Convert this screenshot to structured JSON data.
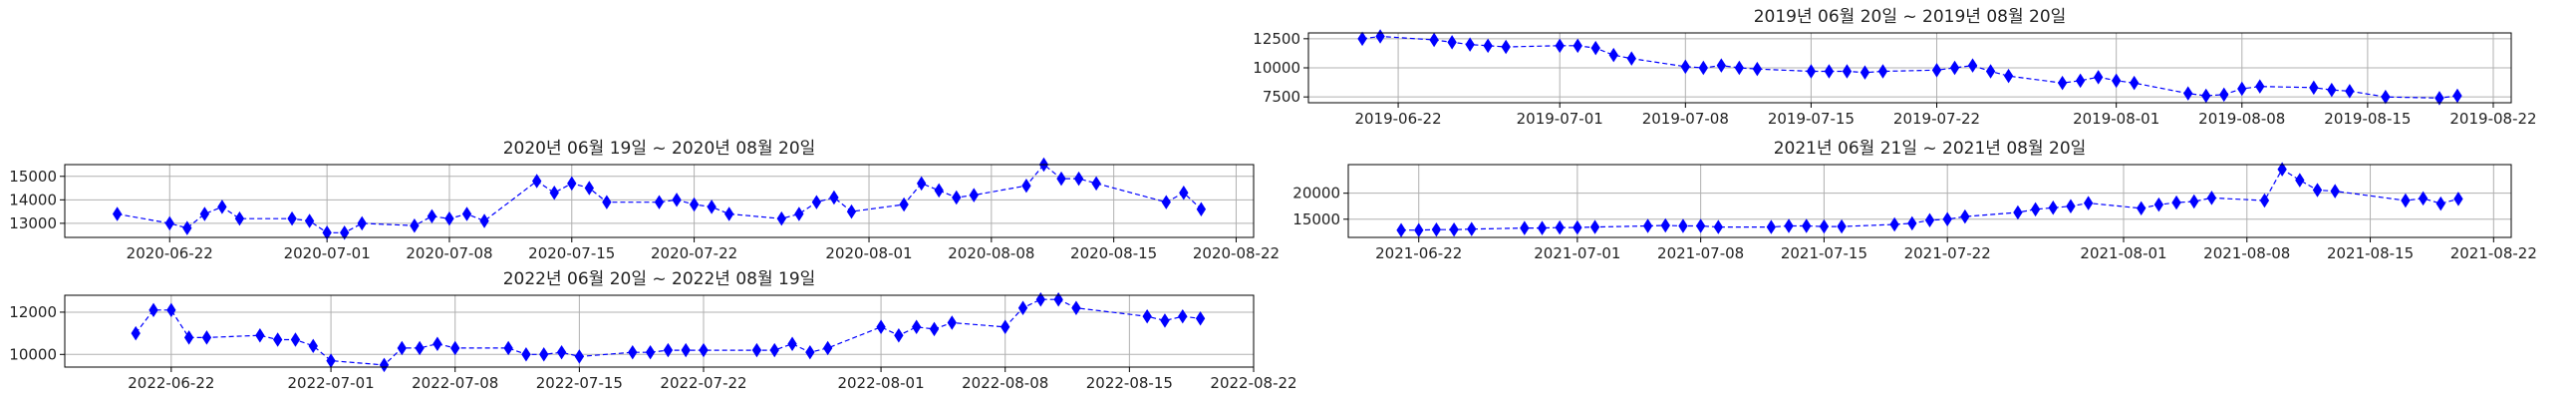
{
  "colors": {
    "series": "#0000ff"
  },
  "chart_data": [
    {
      "id": "p2019",
      "type": "line",
      "title": "2019년 06월 20일 ~ 2019년 08월 20일",
      "grid": true,
      "marker": "thin-diamond",
      "line_style": "dashed",
      "xlim": [
        "2019-06-17",
        "2019-08-23"
      ],
      "ylim": [
        7000,
        13000
      ],
      "yticks": [
        7500,
        10000,
        12500
      ],
      "ytick_labels": [
        "7500",
        "10000",
        "12500"
      ],
      "xticks": [
        "2019-06-22",
        "2019-07-01",
        "2019-07-08",
        "2019-07-15",
        "2019-07-22",
        "2019-08-01",
        "2019-08-08",
        "2019-08-15",
        "2019-08-22"
      ],
      "x": [
        "2019-06-20",
        "2019-06-21",
        "2019-06-24",
        "2019-06-25",
        "2019-06-26",
        "2019-06-27",
        "2019-06-28",
        "2019-07-01",
        "2019-07-02",
        "2019-07-03",
        "2019-07-04",
        "2019-07-05",
        "2019-07-08",
        "2019-07-09",
        "2019-07-10",
        "2019-07-11",
        "2019-07-12",
        "2019-07-15",
        "2019-07-16",
        "2019-07-17",
        "2019-07-18",
        "2019-07-19",
        "2019-07-22",
        "2019-07-23",
        "2019-07-24",
        "2019-07-25",
        "2019-07-26",
        "2019-07-29",
        "2019-07-30",
        "2019-07-31",
        "2019-08-01",
        "2019-08-02",
        "2019-08-05",
        "2019-08-06",
        "2019-08-07",
        "2019-08-08",
        "2019-08-09",
        "2019-08-12",
        "2019-08-13",
        "2019-08-14",
        "2019-08-16",
        "2019-08-19",
        "2019-08-20"
      ],
      "values": [
        12500,
        12700,
        12400,
        12200,
        12000,
        11900,
        11800,
        11900,
        11900,
        11700,
        11100,
        10800,
        10100,
        10000,
        10200,
        10000,
        9900,
        9700,
        9700,
        9700,
        9600,
        9700,
        9800,
        10000,
        10200,
        9700,
        9300,
        8700,
        8900,
        9200,
        8900,
        8700,
        7800,
        7600,
        7700,
        8200,
        8400,
        8300,
        8100,
        8000,
        7500,
        7400,
        7600
      ]
    },
    {
      "id": "p2020",
      "type": "line",
      "title": "2020년 06월 19일 ~ 2020년 08월 20일",
      "grid": true,
      "marker": "thin-diamond",
      "line_style": "dashed",
      "xlim": [
        "2020-06-16",
        "2020-08-23"
      ],
      "ylim": [
        12400,
        15500
      ],
      "yticks": [
        13000,
        14000,
        15000
      ],
      "ytick_labels": [
        "13000",
        "14000",
        "15000"
      ],
      "xticks": [
        "2020-06-22",
        "2020-07-01",
        "2020-07-08",
        "2020-07-15",
        "2020-07-22",
        "2020-08-01",
        "2020-08-08",
        "2020-08-15",
        "2020-08-22"
      ],
      "x": [
        "2020-06-19",
        "2020-06-22",
        "2020-06-23",
        "2020-06-24",
        "2020-06-25",
        "2020-06-26",
        "2020-06-29",
        "2020-06-30",
        "2020-07-01",
        "2020-07-02",
        "2020-07-03",
        "2020-07-06",
        "2020-07-07",
        "2020-07-08",
        "2020-07-09",
        "2020-07-10",
        "2020-07-13",
        "2020-07-14",
        "2020-07-15",
        "2020-07-16",
        "2020-07-17",
        "2020-07-20",
        "2020-07-21",
        "2020-07-22",
        "2020-07-23",
        "2020-07-24",
        "2020-07-27",
        "2020-07-28",
        "2020-07-29",
        "2020-07-30",
        "2020-07-31",
        "2020-08-03",
        "2020-08-04",
        "2020-08-05",
        "2020-08-06",
        "2020-08-07",
        "2020-08-10",
        "2020-08-11",
        "2020-08-12",
        "2020-08-13",
        "2020-08-14",
        "2020-08-18",
        "2020-08-19",
        "2020-08-20"
      ],
      "values": [
        13400,
        13000,
        12800,
        13400,
        13700,
        13200,
        13200,
        13100,
        12600,
        12600,
        13000,
        12900,
        13300,
        13200,
        13400,
        13100,
        14800,
        14300,
        14700,
        14500,
        13900,
        13900,
        14000,
        13800,
        13700,
        13400,
        13200,
        13400,
        13900,
        14100,
        13500,
        13800,
        14700,
        14400,
        14100,
        14200,
        14600,
        15500,
        14900,
        14900,
        14700,
        13900,
        14300,
        13600
      ]
    },
    {
      "id": "p2021",
      "type": "line",
      "title": "2021년 06월 21일 ~ 2021년 08월 20일",
      "grid": true,
      "marker": "thin-diamond",
      "line_style": "dashed",
      "xlim": [
        "2021-06-18",
        "2021-08-23"
      ],
      "ylim": [
        11500,
        25500
      ],
      "yticks": [
        15000,
        20000
      ],
      "ytick_labels": [
        "15000",
        "20000"
      ],
      "xticks": [
        "2021-06-22",
        "2021-07-01",
        "2021-07-08",
        "2021-07-15",
        "2021-07-22",
        "2021-08-01",
        "2021-08-08",
        "2021-08-15",
        "2021-08-22"
      ],
      "x": [
        "2021-06-21",
        "2021-06-22",
        "2021-06-23",
        "2021-06-24",
        "2021-06-25",
        "2021-06-28",
        "2021-06-29",
        "2021-06-30",
        "2021-07-01",
        "2021-07-02",
        "2021-07-05",
        "2021-07-06",
        "2021-07-07",
        "2021-07-08",
        "2021-07-09",
        "2021-07-12",
        "2021-07-13",
        "2021-07-14",
        "2021-07-15",
        "2021-07-16",
        "2021-07-19",
        "2021-07-20",
        "2021-07-21",
        "2021-07-22",
        "2021-07-23",
        "2021-07-26",
        "2021-07-27",
        "2021-07-28",
        "2021-07-29",
        "2021-07-30",
        "2021-08-02",
        "2021-08-03",
        "2021-08-04",
        "2021-08-05",
        "2021-08-06",
        "2021-08-09",
        "2021-08-10",
        "2021-08-11",
        "2021-08-12",
        "2021-08-13",
        "2021-08-17",
        "2021-08-18",
        "2021-08-19",
        "2021-08-20"
      ],
      "values": [
        12900,
        12900,
        13000,
        13000,
        13100,
        13300,
        13300,
        13400,
        13400,
        13500,
        13700,
        13800,
        13700,
        13700,
        13500,
        13500,
        13700,
        13700,
        13600,
        13600,
        14000,
        14200,
        14800,
        15000,
        15500,
        16300,
        16900,
        17200,
        17500,
        18100,
        17100,
        17800,
        18200,
        18400,
        19100,
        18600,
        24600,
        22500,
        20600,
        20400,
        18600,
        19000,
        18000,
        18900
      ]
    },
    {
      "id": "p2022",
      "type": "line",
      "title": "2022년 06월 20일 ~ 2022년 08월 19일",
      "grid": true,
      "marker": "thin-diamond",
      "line_style": "dashed",
      "xlim": [
        "2022-06-16",
        "2022-08-22"
      ],
      "ylim": [
        9400,
        12800
      ],
      "yticks": [
        10000,
        12000
      ],
      "ytick_labels": [
        "10000",
        "12000"
      ],
      "xticks": [
        "2022-06-22",
        "2022-07-01",
        "2022-07-08",
        "2022-07-15",
        "2022-07-22",
        "2022-08-01",
        "2022-08-08",
        "2022-08-15",
        "2022-08-22"
      ],
      "x": [
        "2022-06-20",
        "2022-06-21",
        "2022-06-22",
        "2022-06-23",
        "2022-06-24",
        "2022-06-27",
        "2022-06-28",
        "2022-06-29",
        "2022-06-30",
        "2022-07-01",
        "2022-07-04",
        "2022-07-05",
        "2022-07-06",
        "2022-07-07",
        "2022-07-08",
        "2022-07-11",
        "2022-07-12",
        "2022-07-13",
        "2022-07-14",
        "2022-07-15",
        "2022-07-18",
        "2022-07-19",
        "2022-07-20",
        "2022-07-21",
        "2022-07-22",
        "2022-07-25",
        "2022-07-26",
        "2022-07-27",
        "2022-07-28",
        "2022-07-29",
        "2022-08-01",
        "2022-08-02",
        "2022-08-03",
        "2022-08-04",
        "2022-08-05",
        "2022-08-08",
        "2022-08-09",
        "2022-08-10",
        "2022-08-11",
        "2022-08-12",
        "2022-08-16",
        "2022-08-17",
        "2022-08-18",
        "2022-08-19"
      ],
      "values": [
        11000,
        12100,
        12100,
        10800,
        10800,
        10900,
        10700,
        10700,
        10400,
        9700,
        9500,
        10300,
        10300,
        10500,
        10300,
        10300,
        10000,
        10000,
        10100,
        9900,
        10100,
        10100,
        10200,
        10200,
        10200,
        10200,
        10200,
        10500,
        10100,
        10300,
        11300,
        10900,
        11300,
        11200,
        11500,
        11300,
        12200,
        12600,
        12600,
        12200,
        11800,
        11600,
        11800,
        11700
      ]
    }
  ]
}
